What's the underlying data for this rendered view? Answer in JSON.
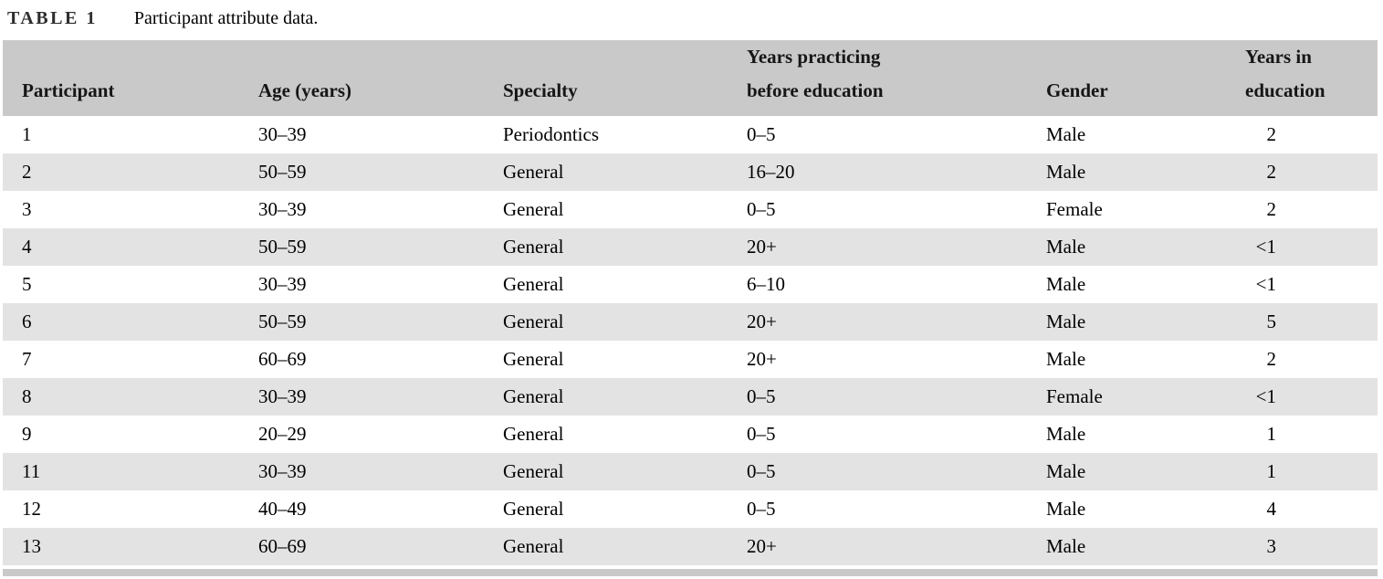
{
  "title": {
    "label": "TABLE 1",
    "caption": "Participant attribute data."
  },
  "colors": {
    "header_bg": "#c9c9c9",
    "stripe_bg": "#e3e3e3",
    "bottom_rule": "#c9c9c9",
    "text": "#111111"
  },
  "table": {
    "columns": [
      {
        "key": "participant",
        "label": "Participant"
      },
      {
        "key": "age",
        "label": "Age (years)"
      },
      {
        "key": "specialty",
        "label": "Specialty"
      },
      {
        "key": "years_practicing",
        "label": "Years practicing\nbefore education"
      },
      {
        "key": "gender",
        "label": "Gender"
      },
      {
        "key": "years_in_education",
        "label": "Years in\neducation"
      }
    ],
    "rows": [
      {
        "participant": "1",
        "age": "30–39",
        "specialty": "Periodontics",
        "years_practicing": "0–5",
        "gender": "Male",
        "years_in_education": "2"
      },
      {
        "participant": "2",
        "age": "50–59",
        "specialty": "General",
        "years_practicing": "16–20",
        "gender": "Male",
        "years_in_education": "2"
      },
      {
        "participant": "3",
        "age": "30–39",
        "specialty": "General",
        "years_practicing": "0–5",
        "gender": "Female",
        "years_in_education": "2"
      },
      {
        "participant": "4",
        "age": "50–59",
        "specialty": "General",
        "years_practicing": "20+",
        "gender": "Male",
        "years_in_education": "<1"
      },
      {
        "participant": "5",
        "age": "30–39",
        "specialty": "General",
        "years_practicing": "6–10",
        "gender": "Male",
        "years_in_education": "<1"
      },
      {
        "participant": "6",
        "age": "50–59",
        "specialty": "General",
        "years_practicing": "20+",
        "gender": "Male",
        "years_in_education": "5"
      },
      {
        "participant": "7",
        "age": "60–69",
        "specialty": "General",
        "years_practicing": "20+",
        "gender": "Male",
        "years_in_education": "2"
      },
      {
        "participant": "8",
        "age": "30–39",
        "specialty": "General",
        "years_practicing": "0–5",
        "gender": "Female",
        "years_in_education": "<1"
      },
      {
        "participant": "9",
        "age": "20–29",
        "specialty": "General",
        "years_practicing": "0–5",
        "gender": "Male",
        "years_in_education": "1"
      },
      {
        "participant": "11",
        "age": "30–39",
        "specialty": "General",
        "years_practicing": "0–5",
        "gender": "Male",
        "years_in_education": "1"
      },
      {
        "participant": "12",
        "age": "40–49",
        "specialty": "General",
        "years_practicing": "0–5",
        "gender": "Male",
        "years_in_education": "4"
      },
      {
        "participant": "13",
        "age": "60–69",
        "specialty": "General",
        "years_practicing": "20+",
        "gender": "Male",
        "years_in_education": "3"
      }
    ]
  }
}
